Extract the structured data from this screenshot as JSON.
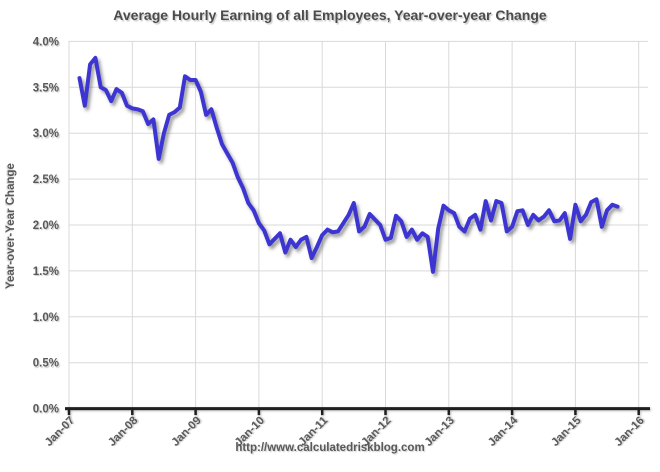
{
  "chart": {
    "title": "Average Hourly Earning of all Employees, Year-over-year Change",
    "y_axis_title": "Year-over-Year Change",
    "footer_url": "http://www.calculatedriskblog.com"
  },
  "chart_data": {
    "type": "line",
    "title": "Average Hourly Earning of all Employees, Year-over-year Change",
    "xlabel": "",
    "ylabel": "Year-over-Year Change",
    "ylim": [
      0.0,
      4.0
    ],
    "y_tick_step": 0.5,
    "y_tick_labels": [
      "0.0%",
      "0.5%",
      "1.0%",
      "1.5%",
      "2.0%",
      "2.5%",
      "3.0%",
      "3.5%",
      "4.0%"
    ],
    "x_tick_labels": [
      "Jan-07",
      "Jan-08",
      "Jan-09",
      "Jan-10",
      "Jan-11",
      "Jan-12",
      "Jan-13",
      "Jan-14",
      "Jan-15",
      "Jan-16"
    ],
    "grid": true,
    "legend": "none",
    "series_name": "Average hourly earnings, year-over-year % change",
    "series_color": "#3d34d2",
    "start_month": "Mar-07",
    "start_offset_months_from_first_tick": 2,
    "end_month": "Sep-15",
    "values_unit": "percent",
    "values": [
      3.6,
      3.3,
      3.75,
      3.82,
      3.5,
      3.47,
      3.35,
      3.48,
      3.44,
      3.3,
      3.27,
      3.26,
      3.24,
      3.1,
      3.15,
      2.72,
      3.0,
      3.2,
      3.23,
      3.28,
      3.62,
      3.58,
      3.58,
      3.45,
      3.2,
      3.26,
      3.06,
      2.88,
      2.78,
      2.68,
      2.52,
      2.4,
      2.24,
      2.16,
      2.02,
      1.94,
      1.79,
      1.85,
      1.91,
      1.7,
      1.84,
      1.76,
      1.84,
      1.87,
      1.64,
      1.76,
      1.89,
      1.95,
      1.92,
      1.93,
      2.02,
      2.11,
      2.24,
      1.93,
      1.98,
      2.12,
      2.06,
      2.0,
      1.84,
      1.86,
      2.1,
      2.04,
      1.87,
      1.95,
      1.84,
      1.91,
      1.87,
      1.49,
      1.96,
      2.21,
      2.16,
      2.13,
      1.98,
      1.93,
      2.07,
      2.11,
      1.95,
      2.26,
      2.05,
      2.26,
      2.24,
      1.93,
      1.98,
      2.15,
      2.16,
      2.0,
      2.11,
      2.05,
      2.09,
      2.16,
      2.04,
      2.05,
      2.13,
      1.85,
      2.22,
      2.04,
      2.11,
      2.25,
      2.28,
      1.98,
      2.16,
      2.22,
      2.2
    ]
  },
  "layout_colors": {
    "line": "#3d34d2",
    "gridline": "#d9d9d9",
    "axis": "#1f1f1f",
    "text": "#595959",
    "background": "#ffffff"
  }
}
